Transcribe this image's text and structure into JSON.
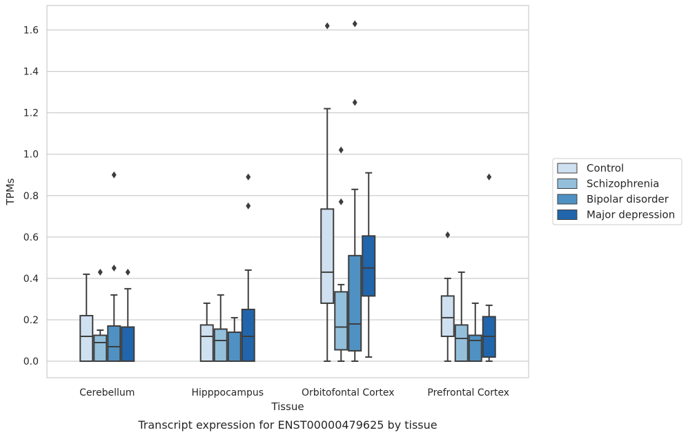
{
  "chart_data": {
    "type": "box",
    "xlabel": "Tissue",
    "ylabel": "TPMs",
    "caption": "Transcript expression for ENST00000479625 by tissue",
    "ylim": [
      -0.08,
      1.72
    ],
    "yticks": [
      "0.0",
      "0.2",
      "0.4",
      "0.6",
      "0.8",
      "1.0",
      "1.2",
      "1.4",
      "1.6"
    ],
    "grid": "horizontal",
    "legend_position": "right",
    "categories": [
      "Cerebellum",
      "Hipppocampus",
      "Orbitofontal Cortex",
      "Prefrontal Cortex"
    ],
    "series": [
      {
        "name": "Control",
        "color": "#cfe0f0",
        "boxes": [
          {
            "whislo": 0.0,
            "q1": 0.0,
            "med": 0.12,
            "q3": 0.22,
            "whishi": 0.42,
            "fliers": []
          },
          {
            "whislo": 0.0,
            "q1": 0.0,
            "med": 0.12,
            "q3": 0.175,
            "whishi": 0.28,
            "fliers": []
          },
          {
            "whislo": 0.0,
            "q1": 0.28,
            "med": 0.43,
            "q3": 0.735,
            "whishi": 1.22,
            "fliers": [
              1.62
            ]
          },
          {
            "whislo": 0.0,
            "q1": 0.12,
            "med": 0.21,
            "q3": 0.315,
            "whishi": 0.4,
            "fliers": [
              0.61
            ]
          }
        ]
      },
      {
        "name": "Schizophrenia",
        "color": "#93bfdb",
        "boxes": [
          {
            "whislo": 0.0,
            "q1": 0.0,
            "med": 0.09,
            "q3": 0.125,
            "whishi": 0.15,
            "fliers": [
              0.43
            ]
          },
          {
            "whislo": 0.0,
            "q1": 0.0,
            "med": 0.1,
            "q3": 0.155,
            "whishi": 0.32,
            "fliers": []
          },
          {
            "whislo": 0.0,
            "q1": 0.055,
            "med": 0.165,
            "q3": 0.335,
            "whishi": 0.37,
            "fliers": [
              0.77,
              1.02
            ]
          },
          {
            "whislo": 0.0,
            "q1": 0.0,
            "med": 0.11,
            "q3": 0.175,
            "whishi": 0.43,
            "fliers": []
          }
        ]
      },
      {
        "name": "Bipolar disorder",
        "color": "#4f91c2",
        "boxes": [
          {
            "whislo": 0.0,
            "q1": 0.0,
            "med": 0.07,
            "q3": 0.17,
            "whishi": 0.32,
            "fliers": [
              0.45,
              0.9
            ]
          },
          {
            "whislo": 0.0,
            "q1": 0.0,
            "med": 0.14,
            "q3": 0.14,
            "whishi": 0.21,
            "fliers": []
          },
          {
            "whislo": 0.0,
            "q1": 0.05,
            "med": 0.18,
            "q3": 0.51,
            "whishi": 0.83,
            "fliers": [
              1.25,
              1.63
            ]
          },
          {
            "whislo": 0.0,
            "q1": 0.0,
            "med": 0.1,
            "q3": 0.125,
            "whishi": 0.28,
            "fliers": []
          }
        ]
      },
      {
        "name": "Major depression",
        "color": "#2166ac",
        "boxes": [
          {
            "whislo": 0.0,
            "q1": 0.0,
            "med": 0.165,
            "q3": 0.165,
            "whishi": 0.35,
            "fliers": [
              0.43
            ]
          },
          {
            "whislo": 0.0,
            "q1": 0.0,
            "med": 0.12,
            "q3": 0.25,
            "whishi": 0.44,
            "fliers": [
              0.75,
              0.89
            ]
          },
          {
            "whislo": 0.02,
            "q1": 0.315,
            "med": 0.45,
            "q3": 0.605,
            "whishi": 0.91,
            "fliers": []
          },
          {
            "whislo": 0.0,
            "q1": 0.02,
            "med": 0.12,
            "q3": 0.215,
            "whishi": 0.27,
            "fliers": [
              0.89
            ]
          }
        ]
      }
    ]
  }
}
